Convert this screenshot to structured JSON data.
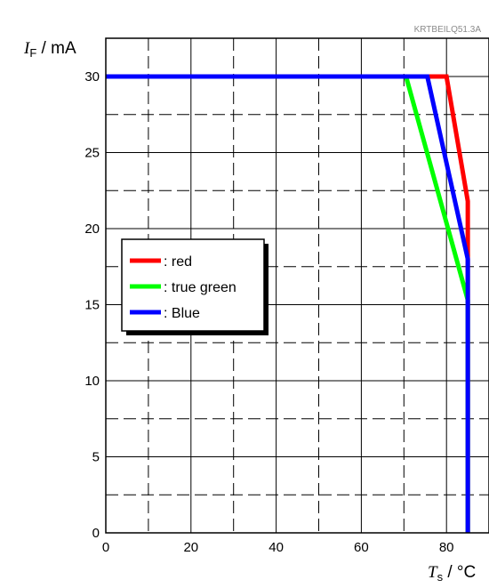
{
  "figure_code": "KRTBEILQ51.3A",
  "chart_data": {
    "type": "line",
    "x_axis": {
      "symbol": "T",
      "subscript": "s",
      "unit_text": " / °C",
      "range": [
        0,
        90
      ],
      "ticks": [
        0,
        20,
        40,
        60,
        80
      ],
      "minor_ticks": [
        10,
        30,
        50,
        70
      ]
    },
    "y_axis": {
      "symbol": "I",
      "subscript": "F",
      "unit_text": " / mA",
      "range": [
        0,
        32.5
      ],
      "ticks": [
        0,
        5,
        10,
        15,
        20,
        25,
        30
      ],
      "minor_ticks": [
        2.5,
        7.5,
        12.5,
        17.5,
        22.5,
        27.5
      ]
    },
    "grid": true,
    "legend_position": "center-left",
    "series": [
      {
        "name": ": red",
        "color": "#ff0000",
        "points": [
          [
            0,
            30
          ],
          [
            80,
            30
          ],
          [
            85,
            21.8
          ],
          [
            85,
            0
          ]
        ]
      },
      {
        "name": ": true green",
        "color": "#00ff00",
        "points": [
          [
            70.5,
            30
          ],
          [
            85,
            15.3
          ],
          [
            85,
            0
          ]
        ]
      },
      {
        "name": ": Blue",
        "color": "#0000ff",
        "points": [
          [
            0,
            30
          ],
          [
            75.5,
            30
          ],
          [
            85,
            18
          ],
          [
            85,
            0
          ]
        ]
      }
    ]
  }
}
